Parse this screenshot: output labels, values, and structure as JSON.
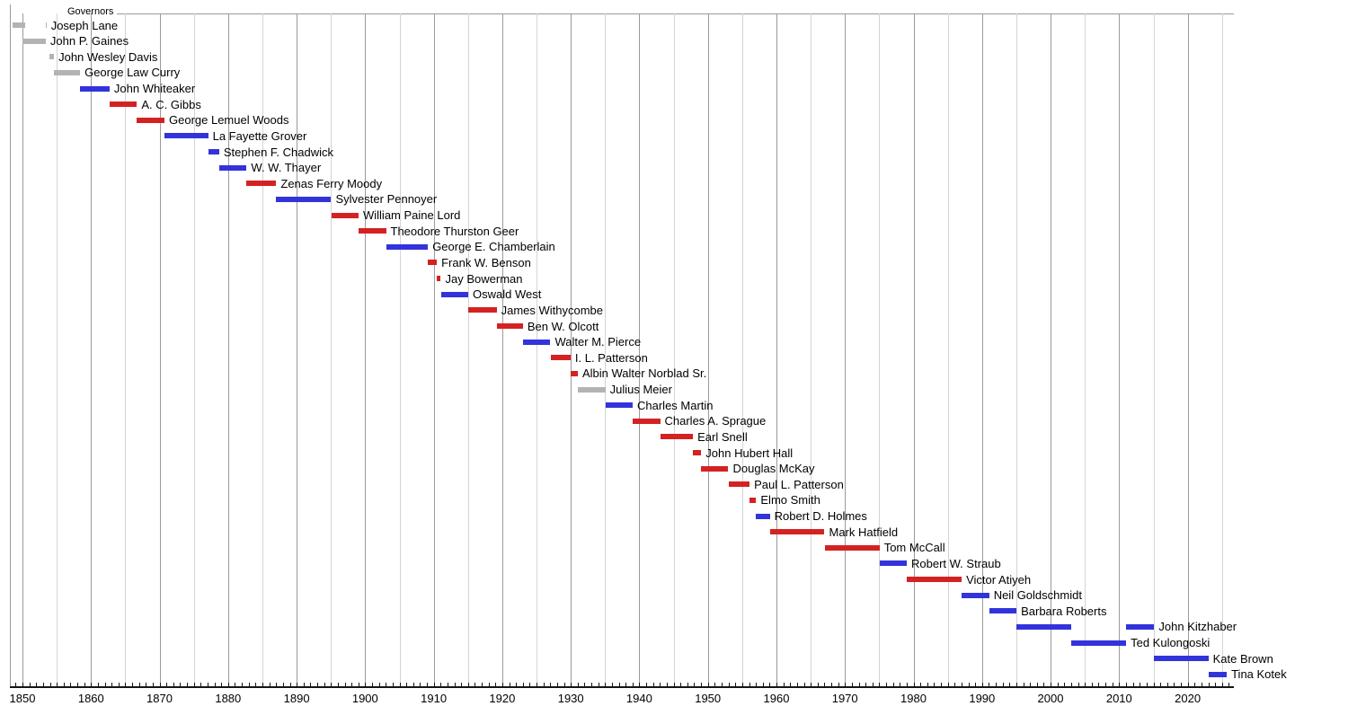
{
  "chart_data": {
    "type": "bar",
    "subtype": "gantt-timeline",
    "title": "Governors",
    "xlabel": "",
    "ylabel": "",
    "x_axis": {
      "min": 1848.2,
      "max": 2026.8,
      "tick_labels": [
        "1850",
        "1860",
        "1870",
        "1880",
        "1890",
        "1900",
        "1910",
        "1920",
        "1930",
        "1940",
        "1950",
        "1960",
        "1970",
        "1980",
        "1990",
        "2000",
        "2010",
        "2020"
      ],
      "minor_tick_interval_years": 1,
      "gridline_interval_years": 5,
      "grid": "on"
    },
    "colors": {
      "blue": "#3333DC",
      "red": "#D42222",
      "gray": "#B3B4B1",
      "grid_major": "#9B9B9B",
      "grid_minor": "#D4D4D4",
      "axis_line": "#151515",
      "text": "#000000",
      "background": "#FFFFFF"
    },
    "legend_position": "none",
    "bars": [
      {
        "name": "Joseph Lane",
        "color": "gray",
        "periods": [
          [
            1848.6,
            1850.45
          ],
          [
            1853.35,
            1853.5
          ]
        ]
      },
      {
        "name": "John P. Gaines",
        "color": "gray",
        "periods": [
          [
            1850.0,
            1853.4
          ]
        ]
      },
      {
        "name": "John Wesley Davis",
        "color": "gray",
        "periods": [
          [
            1853.9,
            1854.6
          ]
        ]
      },
      {
        "name": "George Law Curry",
        "color": "gray",
        "periods": [
          [
            1854.6,
            1858.4
          ]
        ]
      },
      {
        "name": "John Whiteaker",
        "color": "blue",
        "periods": [
          [
            1858.4,
            1862.7
          ]
        ]
      },
      {
        "name": "A. C. Gibbs",
        "color": "red",
        "periods": [
          [
            1862.7,
            1866.7
          ]
        ]
      },
      {
        "name": "George Lemuel Woods",
        "color": "red",
        "periods": [
          [
            1866.7,
            1870.71
          ]
        ]
      },
      {
        "name": "La Fayette Grover",
        "color": "blue",
        "periods": [
          [
            1870.71,
            1877.09
          ]
        ]
      },
      {
        "name": "Stephen F. Chadwick",
        "color": "blue",
        "periods": [
          [
            1877.09,
            1878.7
          ]
        ]
      },
      {
        "name": "W. W. Thayer",
        "color": "blue",
        "periods": [
          [
            1878.7,
            1882.7
          ]
        ]
      },
      {
        "name": "Zenas Ferry Moody",
        "color": "red",
        "periods": [
          [
            1882.7,
            1887.03
          ]
        ]
      },
      {
        "name": "Sylvester Pennoyer",
        "color": "blue",
        "periods": [
          [
            1887.03,
            1895.04
          ]
        ]
      },
      {
        "name": "William Paine Lord",
        "color": "red",
        "periods": [
          [
            1895.04,
            1899.03
          ]
        ]
      },
      {
        "name": "Theodore Thurston Geer",
        "color": "red",
        "periods": [
          [
            1899.03,
            1903.04
          ]
        ]
      },
      {
        "name": "George E. Chamberlain",
        "color": "blue",
        "periods": [
          [
            1903.04,
            1909.16
          ]
        ]
      },
      {
        "name": "Frank W. Benson",
        "color": "red",
        "periods": [
          [
            1909.16,
            1910.46
          ]
        ]
      },
      {
        "name": "Jay Bowerman",
        "color": "red",
        "periods": [
          [
            1910.46,
            1911.03
          ]
        ]
      },
      {
        "name": "Oswald West",
        "color": "blue",
        "periods": [
          [
            1911.03,
            1915.03
          ]
        ]
      },
      {
        "name": "James Withycombe",
        "color": "red",
        "periods": [
          [
            1915.03,
            1919.17
          ]
        ]
      },
      {
        "name": "Ben W. Olcott",
        "color": "red",
        "periods": [
          [
            1919.17,
            1923.02
          ]
        ]
      },
      {
        "name": "Walter M. Pierce",
        "color": "blue",
        "periods": [
          [
            1923.02,
            1927.03
          ]
        ]
      },
      {
        "name": "I. L. Patterson",
        "color": "red",
        "periods": [
          [
            1927.03,
            1929.97
          ]
        ]
      },
      {
        "name": "Albin Walter Norblad Sr.",
        "color": "red",
        "periods": [
          [
            1929.97,
            1931.03
          ]
        ]
      },
      {
        "name": "Julius Meier",
        "color": "gray",
        "periods": [
          [
            1931.03,
            1935.04
          ]
        ]
      },
      {
        "name": "Charles Martin",
        "color": "blue",
        "periods": [
          [
            1935.04,
            1939.02
          ]
        ]
      },
      {
        "name": "Charles A. Sprague",
        "color": "red",
        "periods": [
          [
            1939.02,
            1943.03
          ]
        ]
      },
      {
        "name": "Earl Snell",
        "color": "red",
        "periods": [
          [
            1943.03,
            1947.82
          ]
        ]
      },
      {
        "name": "John Hubert Hall",
        "color": "red",
        "periods": [
          [
            1947.83,
            1949.03
          ]
        ]
      },
      {
        "name": "Douglas McKay",
        "color": "red",
        "periods": [
          [
            1949.03,
            1952.99
          ]
        ]
      },
      {
        "name": "Paul L. Patterson",
        "color": "red",
        "periods": [
          [
            1952.99,
            1956.08
          ]
        ]
      },
      {
        "name": "Elmo Smith",
        "color": "red",
        "periods": [
          [
            1956.09,
            1957.04
          ]
        ]
      },
      {
        "name": "Robert D. Holmes",
        "color": "blue",
        "periods": [
          [
            1957.04,
            1959.03
          ]
        ]
      },
      {
        "name": "Mark Hatfield",
        "color": "red",
        "periods": [
          [
            1959.03,
            1967.02
          ]
        ]
      },
      {
        "name": "Tom McCall",
        "color": "red",
        "periods": [
          [
            1967.02,
            1975.04
          ]
        ]
      },
      {
        "name": "Robert W. Straub",
        "color": "blue",
        "periods": [
          [
            1975.04,
            1979.02
          ]
        ]
      },
      {
        "name": "Victor Atiyeh",
        "color": "red",
        "periods": [
          [
            1979.02,
            1987.03
          ]
        ]
      },
      {
        "name": "Neil Goldschmidt",
        "color": "blue",
        "periods": [
          [
            1987.03,
            1991.04
          ]
        ]
      },
      {
        "name": "Barbara Roberts",
        "color": "blue",
        "periods": [
          [
            1991.04,
            1995.02
          ]
        ]
      },
      {
        "name": "John Kitzhaber",
        "color": "blue",
        "periods": [
          [
            1995.02,
            2003.03
          ],
          [
            2011.02,
            2015.13
          ]
        ]
      },
      {
        "name": "Ted Kulongoski",
        "color": "blue",
        "periods": [
          [
            2003.03,
            2011.02
          ]
        ]
      },
      {
        "name": "Kate Brown",
        "color": "blue",
        "periods": [
          [
            2015.13,
            2023.02
          ]
        ]
      },
      {
        "name": "Tina Kotek",
        "color": "blue",
        "periods": [
          [
            2023.02,
            2025.7
          ]
        ]
      }
    ]
  }
}
